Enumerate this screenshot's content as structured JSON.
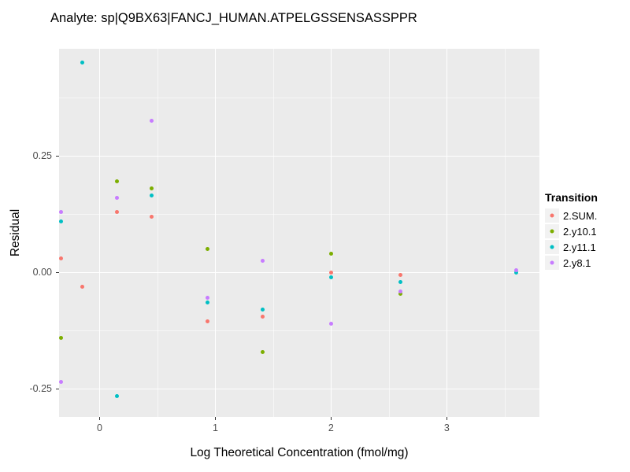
{
  "chart_data": {
    "type": "scatter",
    "title": "Analyte: sp|Q9BX63|FANCJ_HUMAN.ATPELGSSENSASSPPR",
    "xlabel": "Log Theoretical Concentration (fmol/mg)",
    "ylabel": "Residual",
    "xlim": [
      -0.35,
      3.8
    ],
    "ylim": [
      -0.31,
      0.48
    ],
    "x_ticks": [
      0,
      1,
      2,
      3
    ],
    "x_tick_labels": [
      "0",
      "1",
      "2",
      "3"
    ],
    "y_ticks": [
      0.25,
      0.0,
      -0.25
    ],
    "y_tick_labels": [
      "0.25",
      "0.00",
      "-0.25"
    ],
    "x_minor_ticks": [
      0.5,
      1.5,
      2.5,
      3.5
    ],
    "y_minor_ticks": [
      0.375,
      0.125,
      -0.125
    ],
    "grid": true,
    "panel_background": "#EBEBEB",
    "gridline_color": "#FFFFFF",
    "legend_position": "right",
    "legend_title": "Transition",
    "series": [
      {
        "name": "2.SUM.",
        "color": "#F8766D",
        "points": [
          [
            -0.33,
            0.03
          ],
          [
            -0.15,
            -0.03
          ],
          [
            0.15,
            0.13
          ],
          [
            0.45,
            0.12
          ],
          [
            0.93,
            -0.105
          ],
          [
            1.41,
            -0.095
          ],
          [
            2.0,
            0.0
          ],
          [
            2.6,
            -0.005
          ]
        ]
      },
      {
        "name": "2.y10.1",
        "color": "#7CAE00",
        "points": [
          [
            -0.33,
            -0.14
          ],
          [
            0.15,
            0.195
          ],
          [
            0.45,
            0.18
          ],
          [
            0.93,
            0.05
          ],
          [
            1.41,
            -0.17
          ],
          [
            2.0,
            0.04
          ],
          [
            2.6,
            -0.045
          ]
        ]
      },
      {
        "name": "2.y11.1",
        "color": "#00BFC4",
        "points": [
          [
            -0.33,
            0.11
          ],
          [
            -0.15,
            0.45
          ],
          [
            0.15,
            -0.265
          ],
          [
            0.45,
            0.165
          ],
          [
            0.93,
            -0.065
          ],
          [
            1.41,
            -0.08
          ],
          [
            2.0,
            -0.01
          ],
          [
            2.6,
            -0.02
          ],
          [
            3.6,
            0.0
          ]
        ]
      },
      {
        "name": "2.y8.1",
        "color": "#C77CFF",
        "points": [
          [
            -0.33,
            0.13
          ],
          [
            -0.33,
            -0.235
          ],
          [
            0.15,
            0.16
          ],
          [
            0.45,
            0.325
          ],
          [
            0.93,
            -0.055
          ],
          [
            1.41,
            0.025
          ],
          [
            2.0,
            -0.11
          ],
          [
            2.6,
            -0.04
          ],
          [
            3.6,
            0.005
          ]
        ]
      }
    ]
  }
}
